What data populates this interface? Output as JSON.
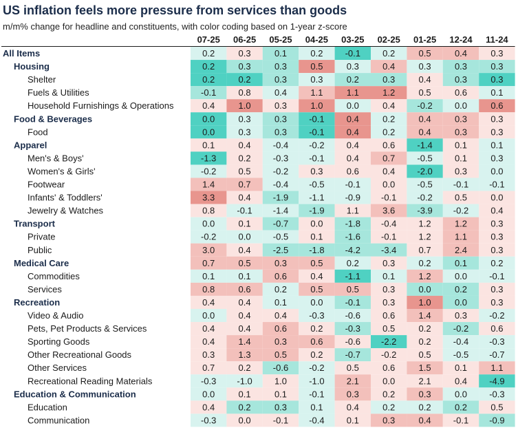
{
  "chart_data": {
    "type": "heatmap",
    "title": "US inflation feels more pressure from services than goods",
    "subtitle": "m/m% change for headline and constituents, with color coding based on 1-year z-score",
    "columns": [
      "07-25",
      "06-25",
      "05-25",
      "04-25",
      "03-25",
      "02-25",
      "01-25",
      "12-24",
      "11-24"
    ],
    "color_scale": {
      "strong_high": "#e8958e",
      "high": "#f3c0bb",
      "mild_high": "#fbe4e1",
      "mild_low": "#d8f3ef",
      "low": "#a6e6dc",
      "strong_low": "#4fd1c2"
    },
    "rows": [
      {
        "label": "All Items",
        "level": 0,
        "values": [
          "0.2",
          "0.3",
          "0.1",
          "0.2",
          "-0.1",
          "0.2",
          "0.5",
          "0.4",
          "0.3"
        ],
        "z": [
          "ml",
          "mh",
          "l",
          "ml",
          "sl",
          "ml",
          "h",
          "h",
          "mh"
        ]
      },
      {
        "label": "Housing",
        "level": 1,
        "values": [
          "0.2",
          "0.3",
          "0.3",
          "0.5",
          "0.3",
          "0.4",
          "0.3",
          "0.3",
          "0.3"
        ],
        "z": [
          "sl",
          "l",
          "l",
          "sh",
          "ml",
          "h",
          "ml",
          "l",
          "l"
        ]
      },
      {
        "label": "Shelter",
        "level": 2,
        "values": [
          "0.2",
          "0.2",
          "0.3",
          "0.3",
          "0.2",
          "0.3",
          "0.4",
          "0.3",
          "0.3"
        ],
        "z": [
          "sl",
          "sl",
          "l",
          "ml",
          "l",
          "l",
          "mh",
          "l",
          "sl"
        ]
      },
      {
        "label": "Fuels & Utilities",
        "level": 2,
        "values": [
          "-0.1",
          "0.8",
          "0.4",
          "1.1",
          "1.1",
          "1.2",
          "0.5",
          "0.6",
          "0.1"
        ],
        "z": [
          "l",
          "mh",
          "ml",
          "h",
          "sh",
          "sh",
          "mh",
          "mh",
          "ml"
        ]
      },
      {
        "label": "Household Furnishings & Operations",
        "level": 2,
        "values": [
          "0.4",
          "1.0",
          "0.3",
          "1.0",
          "0.0",
          "0.4",
          "-0.2",
          "0.0",
          "0.6"
        ],
        "z": [
          "mh",
          "sh",
          "mh",
          "sh",
          "ml",
          "mh",
          "l",
          "ml",
          "sh"
        ]
      },
      {
        "label": "Food & Beverages",
        "level": 1,
        "values": [
          "0.0",
          "0.3",
          "0.3",
          "-0.1",
          "0.4",
          "0.2",
          "0.4",
          "0.3",
          "0.3"
        ],
        "z": [
          "sl",
          "ml",
          "l",
          "sl",
          "sh",
          "ml",
          "h",
          "h",
          "mh"
        ]
      },
      {
        "label": "Food",
        "level": 2,
        "values": [
          "0.0",
          "0.3",
          "0.3",
          "-0.1",
          "0.4",
          "0.2",
          "0.4",
          "0.3",
          "0.3"
        ],
        "z": [
          "sl",
          "ml",
          "l",
          "sl",
          "sh",
          "ml",
          "h",
          "h",
          "mh"
        ]
      },
      {
        "label": "Apparel",
        "level": 1,
        "values": [
          "0.1",
          "0.4",
          "-0.4",
          "-0.2",
          "0.4",
          "0.6",
          "-1.4",
          "0.1",
          "0.1"
        ],
        "z": [
          "mh",
          "mh",
          "ml",
          "ml",
          "mh",
          "mh",
          "sl",
          "mh",
          "ml"
        ]
      },
      {
        "label": "Men's & Boys'",
        "level": 2,
        "values": [
          "-1.3",
          "0.2",
          "-0.3",
          "-0.1",
          "0.4",
          "0.7",
          "-0.5",
          "0.1",
          "0.3"
        ],
        "z": [
          "sl",
          "mh",
          "ml",
          "ml",
          "mh",
          "h",
          "ml",
          "mh",
          "ml"
        ]
      },
      {
        "label": "Women's & Girls'",
        "level": 2,
        "values": [
          "-0.2",
          "0.5",
          "-0.2",
          "0.3",
          "0.6",
          "0.4",
          "-2.0",
          "0.3",
          "0.0"
        ],
        "z": [
          "ml",
          "mh",
          "ml",
          "mh",
          "mh",
          "mh",
          "sl",
          "mh",
          "ml"
        ]
      },
      {
        "label": "Footwear",
        "level": 2,
        "values": [
          "1.4",
          "0.7",
          "-0.4",
          "-0.5",
          "-0.1",
          "0.0",
          "-0.5",
          "-0.1",
          "-0.1"
        ],
        "z": [
          "h",
          "h",
          "ml",
          "ml",
          "ml",
          "mh",
          "ml",
          "ml",
          "ml"
        ]
      },
      {
        "label": "Infants' & Toddlers'",
        "level": 2,
        "values": [
          "3.3",
          "0.4",
          "-1.9",
          "-1.1",
          "-0.9",
          "-0.1",
          "-0.2",
          "0.5",
          "0.0"
        ],
        "z": [
          "sh",
          "mh",
          "l",
          "ml",
          "ml",
          "mh",
          "ml",
          "mh",
          "mh"
        ]
      },
      {
        "label": "Jewelry & Watches",
        "level": 2,
        "values": [
          "0.8",
          "-0.1",
          "-1.4",
          "-1.9",
          "1.1",
          "3.6",
          "-3.9",
          "-0.2",
          "0.4"
        ],
        "z": [
          "mh",
          "ml",
          "ml",
          "l",
          "mh",
          "h",
          "l",
          "ml",
          "mh"
        ]
      },
      {
        "label": "Transport",
        "level": 1,
        "values": [
          "0.0",
          "0.1",
          "-0.7",
          "0.0",
          "-1.8",
          "-0.4",
          "1.2",
          "1.2",
          "0.3"
        ],
        "z": [
          "ml",
          "mh",
          "l",
          "mh",
          "l",
          "mh",
          "mh",
          "h",
          "mh"
        ]
      },
      {
        "label": "Private",
        "level": 2,
        "values": [
          "-0.2",
          "0.0",
          "-0.5",
          "0.1",
          "-1.6",
          "-0.1",
          "1.2",
          "1.1",
          "0.3"
        ],
        "z": [
          "ml",
          "ml",
          "ml",
          "mh",
          "l",
          "mh",
          "mh",
          "h",
          "mh"
        ]
      },
      {
        "label": "Public",
        "level": 2,
        "values": [
          "3.0",
          "0.4",
          "-2.5",
          "-1.8",
          "-4.2",
          "-3.4",
          "0.7",
          "2.4",
          "0.3"
        ],
        "z": [
          "h",
          "mh",
          "l",
          "l",
          "l",
          "l",
          "mh",
          "h",
          "mh"
        ]
      },
      {
        "label": "Medical Care",
        "level": 1,
        "values": [
          "0.7",
          "0.5",
          "0.3",
          "0.5",
          "0.2",
          "0.3",
          "0.2",
          "0.1",
          "0.2"
        ],
        "z": [
          "h",
          "h",
          "h",
          "h",
          "ml",
          "mh",
          "ml",
          "l",
          "ml"
        ]
      },
      {
        "label": "Commodities",
        "level": 2,
        "values": [
          "0.1",
          "0.1",
          "0.6",
          "0.4",
          "-1.1",
          "0.1",
          "1.2",
          "0.0",
          "-0.1"
        ],
        "z": [
          "ml",
          "ml",
          "h",
          "mh",
          "sl",
          "ml",
          "h",
          "ml",
          "ml"
        ]
      },
      {
        "label": "Services",
        "level": 2,
        "values": [
          "0.8",
          "0.6",
          "0.2",
          "0.5",
          "0.5",
          "0.3",
          "0.0",
          "0.2",
          "0.3"
        ],
        "z": [
          "h",
          "h",
          "ml",
          "h",
          "h",
          "mh",
          "l",
          "l",
          "mh"
        ]
      },
      {
        "label": "Recreation",
        "level": 1,
        "values": [
          "0.4",
          "0.4",
          "0.1",
          "0.0",
          "-0.1",
          "0.3",
          "1.0",
          "0.0",
          "0.3"
        ],
        "z": [
          "mh",
          "mh",
          "ml",
          "ml",
          "l",
          "mh",
          "sh",
          "l",
          "mh"
        ]
      },
      {
        "label": "Video & Audio",
        "level": 2,
        "values": [
          "0.0",
          "0.4",
          "0.4",
          "-0.3",
          "-0.6",
          "0.6",
          "1.4",
          "0.3",
          "-0.2"
        ],
        "z": [
          "ml",
          "mh",
          "mh",
          "ml",
          "ml",
          "mh",
          "h",
          "mh",
          "ml"
        ]
      },
      {
        "label": "Pets, Pet Products & Services",
        "level": 2,
        "values": [
          "0.4",
          "0.4",
          "0.6",
          "0.2",
          "-0.3",
          "0.5",
          "0.2",
          "-0.2",
          "0.6"
        ],
        "z": [
          "mh",
          "mh",
          "h",
          "mh",
          "l",
          "mh",
          "mh",
          "l",
          "mh"
        ]
      },
      {
        "label": "Sporting Goods",
        "level": 2,
        "values": [
          "0.4",
          "1.4",
          "0.3",
          "0.6",
          "-0.6",
          "-2.2",
          "0.2",
          "-0.4",
          "-0.3"
        ],
        "z": [
          "mh",
          "h",
          "h",
          "h",
          "mh",
          "sl",
          "mh",
          "ml",
          "ml"
        ]
      },
      {
        "label": "Other Recreational Goods",
        "level": 2,
        "values": [
          "0.3",
          "1.3",
          "0.5",
          "0.2",
          "-0.7",
          "-0.2",
          "0.5",
          "-0.5",
          "-0.7"
        ],
        "z": [
          "mh",
          "h",
          "h",
          "mh",
          "l",
          "mh",
          "mh",
          "ml",
          "ml"
        ]
      },
      {
        "label": "Other Services",
        "level": 2,
        "values": [
          "0.7",
          "0.2",
          "-0.6",
          "-0.2",
          "0.5",
          "0.6",
          "1.5",
          "0.1",
          "1.1"
        ],
        "z": [
          "mh",
          "mh",
          "l",
          "ml",
          "mh",
          "mh",
          "h",
          "mh",
          "h"
        ]
      },
      {
        "label": "Recreational Reading Materials",
        "level": 2,
        "values": [
          "-0.3",
          "-1.0",
          "1.0",
          "-1.0",
          "2.1",
          "0.0",
          "2.1",
          "0.4",
          "-4.9"
        ],
        "z": [
          "ml",
          "ml",
          "mh",
          "ml",
          "h",
          "mh",
          "mh",
          "mh",
          "sl"
        ]
      },
      {
        "label": "Education & Communication",
        "level": 1,
        "values": [
          "0.0",
          "0.1",
          "0.1",
          "-0.1",
          "0.3",
          "0.2",
          "0.3",
          "0.0",
          "-0.3"
        ],
        "z": [
          "ml",
          "mh",
          "mh",
          "ml",
          "h",
          "mh",
          "h",
          "ml",
          "ml"
        ]
      },
      {
        "label": "Education",
        "level": 2,
        "values": [
          "0.4",
          "0.2",
          "0.3",
          "0.1",
          "0.4",
          "0.2",
          "0.2",
          "0.2",
          "0.5"
        ],
        "z": [
          "mh",
          "l",
          "l",
          "ml",
          "mh",
          "ml",
          "ml",
          "l",
          "mh"
        ]
      },
      {
        "label": "Communication",
        "level": 2,
        "values": [
          "-0.3",
          "0.0",
          "-0.1",
          "-0.4",
          "0.1",
          "0.3",
          "0.4",
          "-0.1",
          "-0.9"
        ],
        "z": [
          "ml",
          "mh",
          "mh",
          "ml",
          "mh",
          "h",
          "h",
          "mh",
          "l"
        ]
      }
    ]
  }
}
